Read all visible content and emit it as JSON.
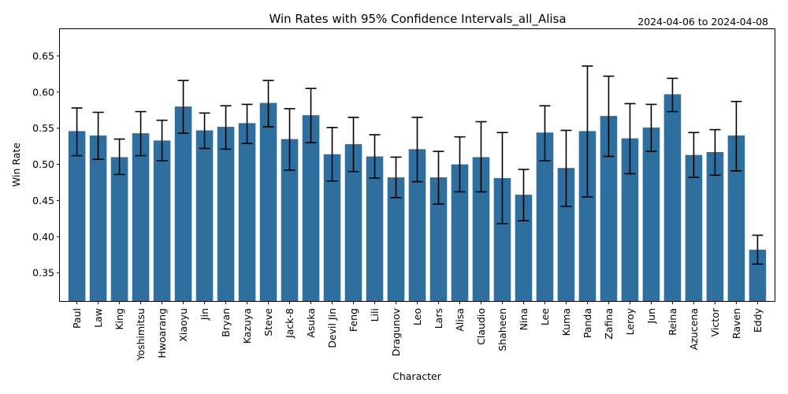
{
  "chart_data": {
    "type": "bar",
    "title": "Win Rates with 95% Confidence Intervals_all_Alisa",
    "date_range": "2024-04-06 to 2024-04-08",
    "xlabel": "Character",
    "ylabel": "Win Rate",
    "ylim": [
      0.311,
      0.687
    ],
    "yticks": [
      0.35,
      0.4,
      0.45,
      0.5,
      0.55,
      0.6,
      0.65
    ],
    "ytick_labels": [
      "0.35",
      "0.40",
      "0.45",
      "0.50",
      "0.55",
      "0.60",
      "0.65"
    ],
    "grid": false,
    "bar_color": "#2f6f9f",
    "error_bar_color": "#000000",
    "categories": [
      "Paul",
      "Law",
      "King",
      "Yoshimitsu",
      "Hwoarang",
      "Xiaoyu",
      "Jin",
      "Bryan",
      "Kazuya",
      "Steve",
      "Jack-8",
      "Asuka",
      "Devil Jin",
      "Feng",
      "Lili",
      "Dragunov",
      "Leo",
      "Lars",
      "Alisa",
      "Claudio",
      "Shaheen",
      "Nina",
      "Lee",
      "Kuma",
      "Panda",
      "Zafina",
      "Leroy",
      "Jun",
      "Reina",
      "Azucena",
      "Victor",
      "Raven",
      "Eddy"
    ],
    "values": [
      0.546,
      0.54,
      0.51,
      0.543,
      0.533,
      0.58,
      0.547,
      0.552,
      0.557,
      0.585,
      0.535,
      0.568,
      0.514,
      0.528,
      0.511,
      0.482,
      0.521,
      0.482,
      0.5,
      0.51,
      0.481,
      0.458,
      0.544,
      0.495,
      0.546,
      0.567,
      0.536,
      0.551,
      0.597,
      0.513,
      0.517,
      0.54,
      0.382
    ],
    "ci_lower": [
      0.512,
      0.507,
      0.486,
      0.512,
      0.505,
      0.543,
      0.522,
      0.521,
      0.529,
      0.552,
      0.492,
      0.53,
      0.477,
      0.49,
      0.481,
      0.454,
      0.476,
      0.445,
      0.462,
      0.462,
      0.418,
      0.422,
      0.505,
      0.442,
      0.455,
      0.511,
      0.487,
      0.518,
      0.573,
      0.482,
      0.485,
      0.491,
      0.362
    ],
    "ci_upper": [
      0.578,
      0.572,
      0.535,
      0.573,
      0.561,
      0.616,
      0.571,
      0.581,
      0.583,
      0.616,
      0.577,
      0.605,
      0.551,
      0.565,
      0.541,
      0.51,
      0.565,
      0.518,
      0.538,
      0.559,
      0.544,
      0.493,
      0.581,
      0.547,
      0.636,
      0.622,
      0.584,
      0.583,
      0.619,
      0.544,
      0.548,
      0.587,
      0.402
    ]
  }
}
